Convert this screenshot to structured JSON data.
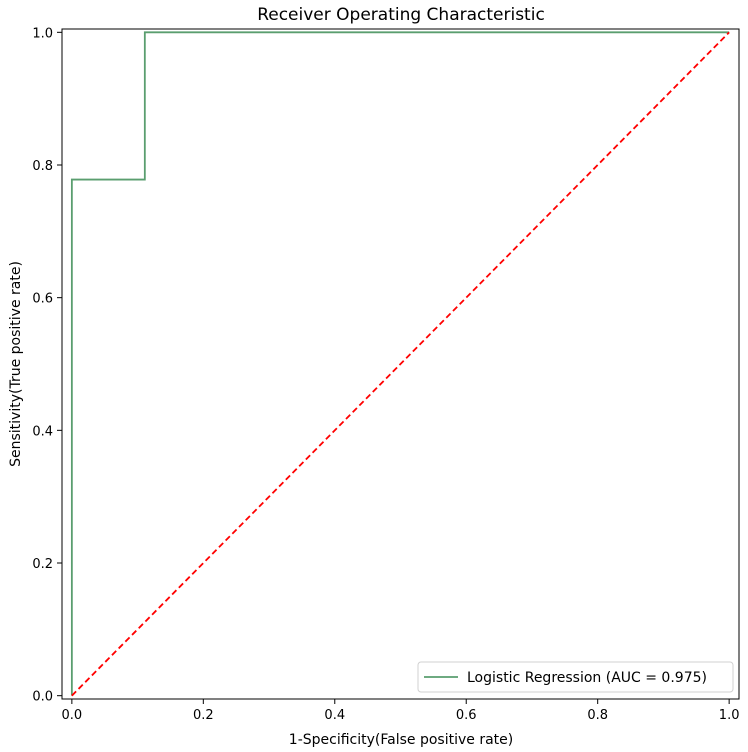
{
  "chart_data": {
    "type": "line",
    "title": "Receiver Operating Characteristic",
    "xlabel": "1-Specificity(False positive rate)",
    "ylabel": "Sensitivity(True positive rate)",
    "xlim": [
      -0.015,
      1.015
    ],
    "ylim": [
      -0.005,
      1.005
    ],
    "xticks": [
      0.0,
      0.2,
      0.4,
      0.6,
      0.8,
      1.0
    ],
    "yticks": [
      0.0,
      0.2,
      0.4,
      0.6,
      0.8,
      1.0
    ],
    "xtick_labels": [
      "0.0",
      "0.2",
      "0.4",
      "0.6",
      "0.8",
      "1.0"
    ],
    "ytick_labels": [
      "0.0",
      "0.2",
      "0.4",
      "0.6",
      "0.8",
      "1.0"
    ],
    "grid": false,
    "legend_position": "lower-right",
    "series": [
      {
        "name": "Logistic Regression (AUC = 0.975)",
        "color": "#5a9e6f",
        "style": "solid",
        "x": [
          0.0,
          0.0,
          0.111,
          0.111,
          1.0
        ],
        "y": [
          0.0,
          0.778,
          0.778,
          1.0,
          1.0
        ]
      },
      {
        "color": "#ff0000",
        "style": "dashed",
        "x": [
          0.0,
          1.0
        ],
        "y": [
          0.0,
          1.0
        ]
      }
    ]
  }
}
